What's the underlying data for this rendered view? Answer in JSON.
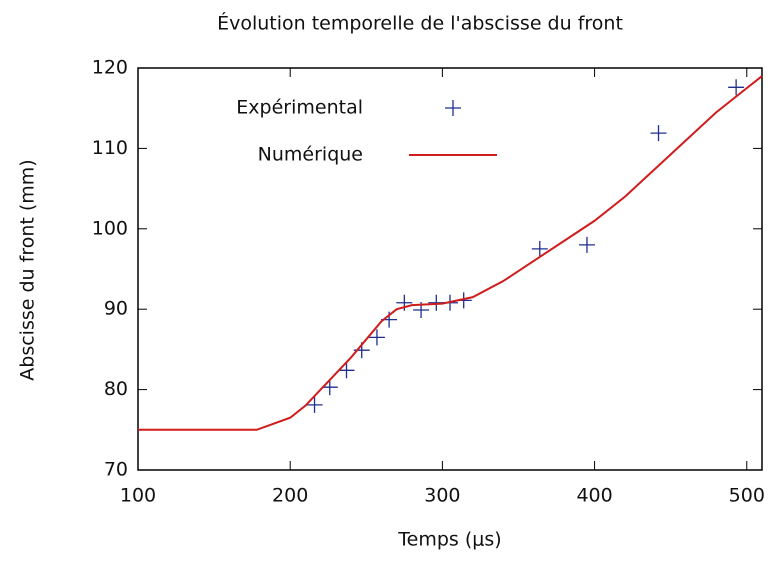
{
  "chart_data": {
    "type": "line",
    "title": "Évolution temporelle de l'abscisse du front",
    "x_label": "Temps (μs)",
    "y_label": "Abscisse du front (mm)",
    "xlim": [
      100,
      510
    ],
    "xticks": [
      100,
      200,
      300,
      400,
      500
    ],
    "ylim": [
      70,
      120
    ],
    "yticks": [
      70,
      80,
      90,
      100,
      110,
      120
    ],
    "legend": "top-left",
    "series": [
      {
        "name": "Expérimental",
        "type": "scatter",
        "color": "#1f2f8f",
        "x": [
          216,
          226,
          237,
          247,
          257,
          265,
          275,
          286,
          296,
          305,
          314,
          364,
          395,
          442,
          493
        ],
        "values": [
          78.1,
          80.3,
          82.4,
          84.9,
          86.5,
          88.7,
          90.8,
          89.9,
          90.8,
          90.8,
          91.1,
          97.5,
          98,
          111.9,
          117.6
        ]
      },
      {
        "name": "Numérique",
        "type": "line",
        "color": "#d01c1c",
        "x": [
          100,
          178,
          200,
          210,
          220,
          240,
          260,
          270,
          280,
          300,
          320,
          340,
          360,
          380,
          400,
          420,
          440,
          460,
          480,
          500,
          510
        ],
        "values": [
          75,
          75,
          76.5,
          78,
          80,
          84,
          88.5,
          90,
          90.5,
          90.7,
          91.5,
          93.5,
          96,
          98.5,
          101,
          104,
          107.5,
          111,
          114.5,
          117.5,
          119
        ]
      }
    ]
  }
}
